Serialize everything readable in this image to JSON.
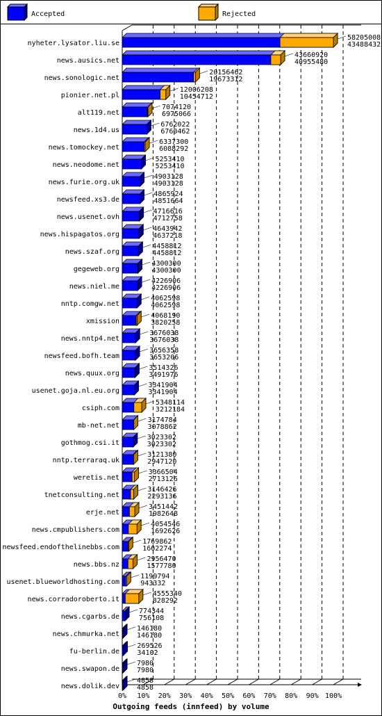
{
  "chart_data": {
    "type": "bar",
    "orientation": "horizontal",
    "stacked": false,
    "title": "Outgoing feeds (innfeed) by volume",
    "legend": {
      "placement": "top",
      "entries": [
        "Accepted",
        "Rejected"
      ]
    },
    "x_ticks": [
      "0%",
      "10%",
      "20%",
      "30%",
      "40%",
      "50%",
      "60%",
      "70%",
      "80%",
      "90%",
      "100%"
    ],
    "xlim": [
      0,
      100
    ],
    "grid": true,
    "colors": {
      "accepted": "#0000ff",
      "rejected": "#ffaa00"
    },
    "categories": [
      "nyheter.lysator.liu.se",
      "news.ausics.net",
      "news.sonologic.net",
      "pionier.net.pl",
      "alt119.net",
      "news.1d4.us",
      "news.tomockey.net",
      "news.neodome.net",
      "news.furie.org.uk",
      "newsfeed.xs3.de",
      "news.usenet.ovh",
      "news.hispagatos.org",
      "news.szaf.org",
      "gegeweb.org",
      "news.niel.me",
      "nntp.comgw.net",
      "xmission",
      "news.nntp4.net",
      "newsfeed.bofh.team",
      "news.quux.org",
      "usenet.goja.nl.eu.org",
      "csiph.com",
      "mb-net.net",
      "gothmog.csi.it",
      "nntp.terraraq.uk",
      "weretis.net",
      "tnetconsulting.net",
      "erje.net",
      "news.cmpublishers.com",
      "newsfeed.endofthelinebbs.com",
      "news.bbs.nz",
      "usenet.blueworldhosting.com",
      "news.corradoroberto.it",
      "news.cgarbs.de",
      "news.chmurka.net",
      "fu-berlin.de",
      "news.swapon.de",
      "news.dolik.dev"
    ],
    "series": [
      {
        "name": "Accepted",
        "values": [
          58205008,
          43660920,
          20156462,
          12006208,
          7074120,
          6762022,
          6337300,
          5253410,
          4903128,
          4865924,
          4716616,
          4643942,
          4458812,
          4300300,
          4226906,
          4062598,
          4068190,
          3676038,
          3656358,
          3514326,
          3341904,
          5348114,
          3174784,
          3023302,
          3121380,
          3366504,
          3146426,
          3451442,
          4054546,
          1769862,
          2956470,
          1199794,
          4555340,
          774344,
          146180,
          269526,
          7980,
          4858
        ]
      },
      {
        "name": "Rejected",
        "values": [
          43488432,
          40955480,
          19673312,
          10454712,
          6975066,
          6760462,
          6088292,
          5253410,
          4903128,
          4851664,
          4712758,
          4637218,
          4458812,
          4300300,
          4226906,
          4062598,
          3820258,
          3676038,
          3653206,
          3491976,
          3341904,
          3212184,
          3078862,
          3023302,
          2947120,
          2713126,
          2293136,
          1982648,
          1692626,
          1602274,
          1577780,
          943332,
          828292,
          756108,
          146180,
          34102,
          7980,
          4858
        ]
      }
    ]
  }
}
